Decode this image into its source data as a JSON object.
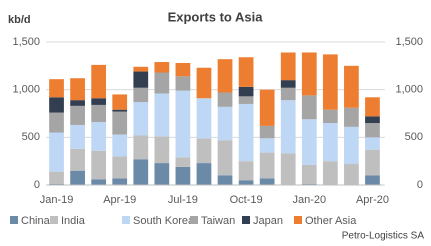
{
  "chart_data": {
    "type": "stacked_bar",
    "title": "Exports to Asia",
    "y_label": "kb/d",
    "source": "Petro-Logistics SA",
    "categories": [
      "Jan-19",
      null,
      null,
      "Apr-19",
      null,
      null,
      "Jul-19",
      null,
      null,
      "Oct-19",
      null,
      null,
      "Jan-20",
      null,
      null,
      "Apr-20"
    ],
    "series": [
      {
        "name": "China",
        "color": "#6b8aa8",
        "values": [
          10,
          150,
          60,
          70,
          270,
          230,
          190,
          230,
          100,
          50,
          70,
          0,
          10,
          0,
          0,
          100
        ]
      },
      {
        "name": "India",
        "color": "#bfbfbf",
        "values": [
          130,
          230,
          300,
          230,
          250,
          280,
          100,
          260,
          370,
          200,
          270,
          330,
          200,
          250,
          220,
          270
        ]
      },
      {
        "name": "South Korea",
        "color": "#bdd7f5",
        "values": [
          410,
          250,
          300,
          230,
          350,
          450,
          700,
          420,
          350,
          600,
          150,
          560,
          480,
          400,
          390,
          130
        ]
      },
      {
        "name": "Taiwan",
        "color": "#a5a5a5",
        "values": [
          210,
          200,
          180,
          240,
          150,
          220,
          150,
          0,
          150,
          80,
          130,
          130,
          250,
          140,
          200,
          150
        ]
      },
      {
        "name": "Japan",
        "color": "#333f50",
        "values": [
          160,
          60,
          70,
          20,
          170,
          0,
          0,
          0,
          0,
          100,
          0,
          80,
          0,
          0,
          0,
          70
        ]
      },
      {
        "name": "Other Asia",
        "color": "#ed7d31",
        "values": [
          190,
          230,
          350,
          160,
          50,
          110,
          140,
          320,
          350,
          310,
          380,
          290,
          450,
          580,
          440,
          200
        ]
      }
    ],
    "ylim": [
      0,
      1500
    ],
    "yticks": [
      0,
      500,
      {
        "value": 1000,
        "label": "1,000"
      },
      {
        "value": 1500,
        "label": "1,500"
      }
    ],
    "y2lim": [
      0,
      1500
    ],
    "y2ticks": [
      0,
      500,
      {
        "value": 1000,
        "label": "1,000"
      },
      {
        "value": 1500,
        "label": "1,500"
      }
    ],
    "legend": "bottom"
  }
}
